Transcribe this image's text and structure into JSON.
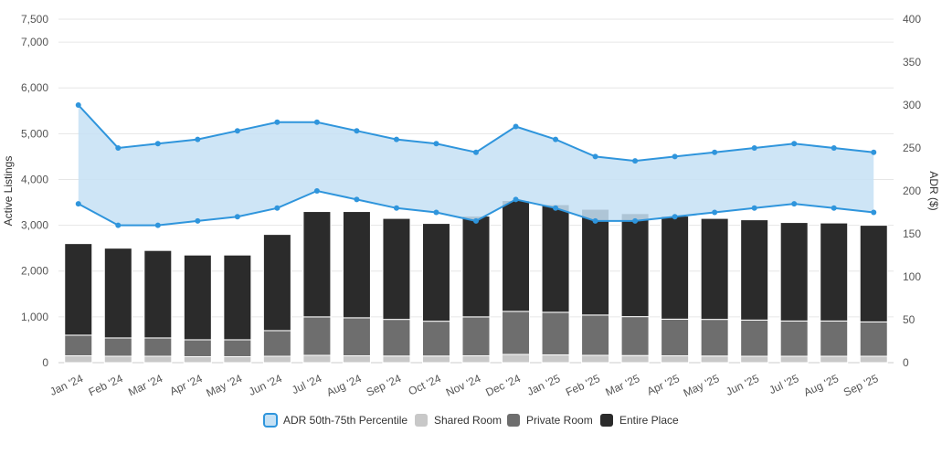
{
  "chart_data": {
    "type": "bar",
    "categories": [
      "Jan '24",
      "Feb '24",
      "Mar '24",
      "Apr '24",
      "May '24",
      "Jun '24",
      "Jul '24",
      "Aug '24",
      "Sep '24",
      "Oct '24",
      "Nov '24",
      "Dec '24",
      "Jan '25",
      "Feb '25",
      "Mar '25",
      "Apr '25",
      "May '25",
      "Jun '25",
      "Jul '25",
      "Aug '25",
      "Sep '25"
    ],
    "left_axis": {
      "label": "Active Listings",
      "ylim": [
        0,
        7500
      ],
      "ticks": [
        0,
        1000,
        2000,
        3000,
        4000,
        5000,
        6000,
        7000,
        7500
      ],
      "tick_labels": [
        "0",
        "1,000",
        "2,000",
        "3,000",
        "4,000",
        "5,000",
        "6,000",
        "7,000",
        "7,500"
      ]
    },
    "right_axis": {
      "label": "ADR ($)",
      "ylim": [
        0,
        400
      ],
      "ticks": [
        0,
        50,
        100,
        150,
        200,
        250,
        300,
        350,
        400
      ],
      "tick_labels": [
        "0",
        "50",
        "100",
        "150",
        "200",
        "250",
        "300",
        "350",
        "400"
      ]
    },
    "series": [
      {
        "name": "Shared Room",
        "kind": "stacked-bar",
        "color": "#c8c8c8",
        "values": [
          150,
          140,
          140,
          130,
          130,
          140,
          160,
          150,
          145,
          145,
          150,
          180,
          170,
          160,
          155,
          150,
          145,
          140,
          140,
          140,
          140
        ]
      },
      {
        "name": "Private Room",
        "kind": "stacked-bar",
        "color": "#6e6e6e",
        "values": [
          450,
          400,
          400,
          370,
          370,
          560,
          840,
          830,
          800,
          760,
          850,
          940,
          930,
          880,
          850,
          800,
          800,
          790,
          770,
          770,
          750
        ]
      },
      {
        "name": "Entire Place",
        "kind": "stacked-bar",
        "color": "#2b2b2b",
        "values": [
          2000,
          1960,
          1910,
          1850,
          1850,
          2100,
          2300,
          2320,
          2205,
          2135,
          2200,
          2420,
          2350,
          2310,
          2250,
          2250,
          2205,
          2190,
          2150,
          2140,
          2110
        ]
      },
      {
        "name": "ADR 50th-75th Percentile",
        "kind": "range-area",
        "axis": "right",
        "color": "#2f95dc",
        "fill": "#c5e1f5",
        "low": [
          185,
          160,
          160,
          165,
          170,
          180,
          200,
          190,
          180,
          175,
          165,
          190,
          180,
          165,
          165,
          170,
          175,
          180,
          185,
          180,
          175
        ],
        "high": [
          300,
          250,
          255,
          260,
          270,
          280,
          280,
          270,
          260,
          255,
          245,
          275,
          260,
          240,
          235,
          240,
          245,
          250,
          255,
          250,
          245
        ]
      }
    ],
    "grid": true,
    "legend_position": "bottom-center",
    "legend": [
      "ADR 50th-75th Percentile",
      "Shared Room",
      "Private Room",
      "Entire Place"
    ]
  }
}
